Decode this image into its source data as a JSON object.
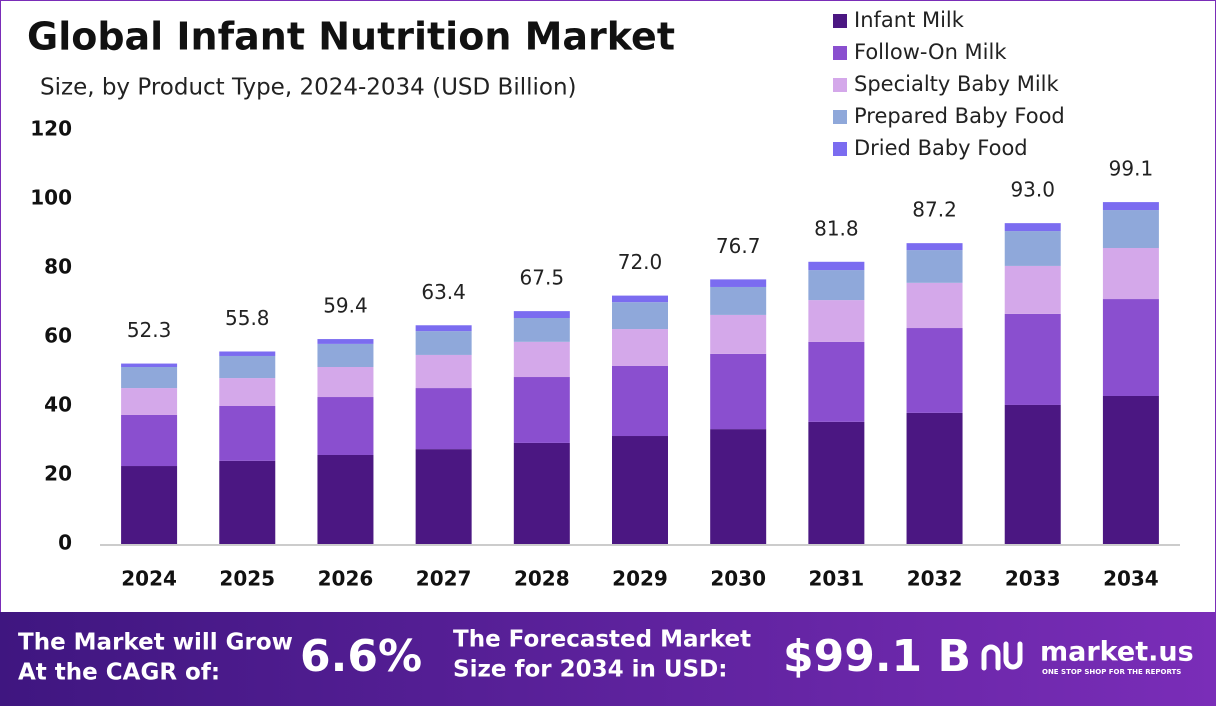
{
  "chart_data": {
    "type": "stacked_bar",
    "title": "Global Infant Nutrition Market",
    "subtitle": "Size, by Product Type, 2024-2034 (USD Billion)",
    "categories": [
      "2024",
      "2025",
      "2026",
      "2027",
      "2028",
      "2029",
      "2030",
      "2031",
      "2032",
      "2033",
      "2034"
    ],
    "series": [
      {
        "name": "Infant Milk",
        "color": "#4b1782",
        "values": [
          22.6,
          24.1,
          25.8,
          27.5,
          29.3,
          31.3,
          33.3,
          35.4,
          38.0,
          40.3,
          42.9
        ]
      },
      {
        "name": "Follow-On Milk",
        "color": "#8a4fcf",
        "values": [
          14.8,
          15.9,
          16.8,
          17.7,
          19.1,
          20.3,
          21.8,
          23.2,
          24.6,
          26.4,
          28.1
        ]
      },
      {
        "name": "Specialty Baby Milk",
        "color": "#d4a8ea",
        "values": [
          7.8,
          8.1,
          8.7,
          9.6,
          10.2,
          10.7,
          11.3,
          12.1,
          13.1,
          13.9,
          14.8
        ]
      },
      {
        "name": "Prepared Baby Food",
        "color": "#8fa8da",
        "values": [
          6.1,
          6.4,
          6.7,
          6.9,
          6.9,
          7.8,
          8.1,
          8.7,
          9.5,
          10.1,
          11.0
        ]
      },
      {
        "name": "Dried Baby Food",
        "color": "#7b6cf0",
        "values": [
          1.0,
          1.3,
          1.4,
          1.7,
          2.0,
          1.9,
          2.2,
          2.4,
          2.0,
          2.3,
          2.3
        ]
      }
    ],
    "totals": [
      52.3,
      55.8,
      59.4,
      63.4,
      67.5,
      72.0,
      76.7,
      81.8,
      87.2,
      93.0,
      99.1
    ],
    "total_labels": [
      "52.3",
      "55.8",
      "59.4",
      "63.4",
      "67.5",
      "72.0",
      "76.7",
      "81.8",
      "87.2",
      "93.0",
      "99.1"
    ],
    "ylim": [
      0,
      120
    ],
    "yticks": [
      0,
      20,
      40,
      60,
      80,
      100,
      120
    ],
    "grid": false,
    "legend": "top-right"
  },
  "footer": {
    "cagr_label": [
      "The Market will Grow",
      "At the CAGR of:"
    ],
    "cagr": "6.6%",
    "forecast_label": [
      "The Forecasted Market",
      "Size for 2034 in USD:"
    ],
    "forecast": "$99.1 B",
    "brand": "market.us",
    "tagline": "ONE STOP SHOP FOR THE REPORTS"
  }
}
